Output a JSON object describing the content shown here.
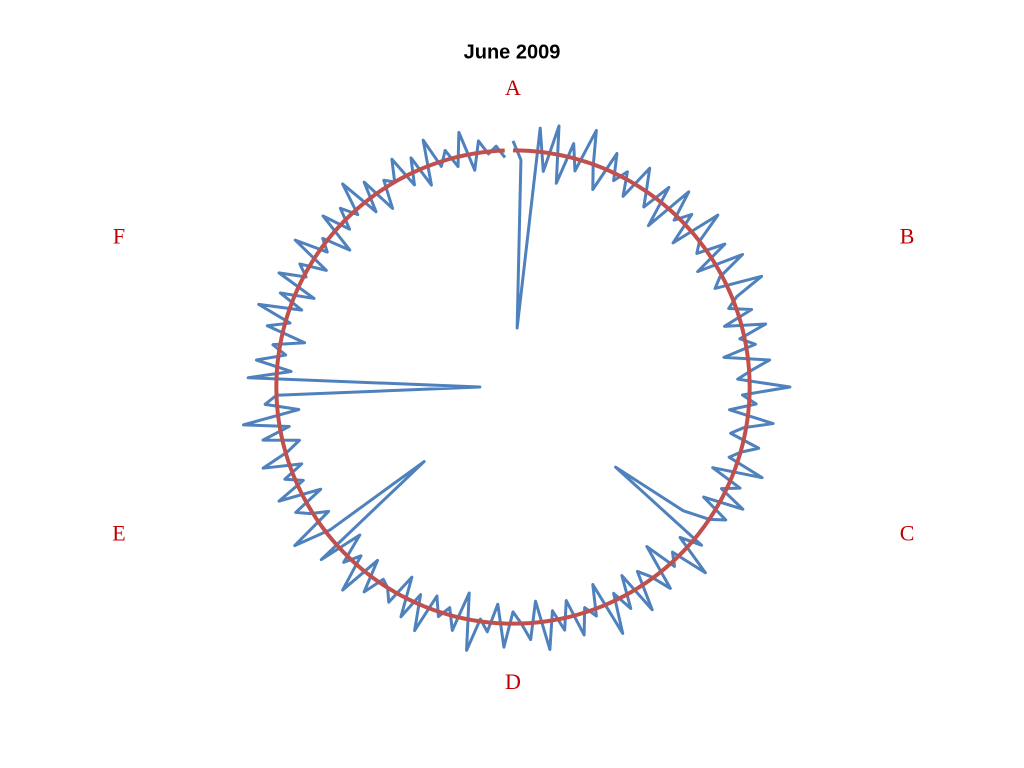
{
  "chart_data": {
    "type": "radar",
    "title": "June 2009",
    "categories": [
      "A",
      null,
      null,
      null,
      null,
      null,
      null,
      null,
      null,
      null,
      null,
      null,
      null,
      null,
      null,
      null,
      null,
      null,
      null,
      null,
      null,
      null,
      null,
      null,
      null,
      null,
      null,
      null,
      null,
      null,
      "B",
      null,
      null,
      null,
      null,
      null,
      null,
      null,
      null,
      null,
      null,
      null,
      null,
      null,
      null,
      null,
      null,
      null,
      null,
      null,
      null,
      null,
      null,
      null,
      null,
      null,
      null,
      null,
      null,
      null,
      "C",
      null,
      null,
      null,
      null,
      null,
      null,
      null,
      null,
      null,
      null,
      null,
      null,
      null,
      null,
      null,
      null,
      null,
      null,
      null,
      null,
      null,
      null,
      null,
      null,
      null,
      null,
      null,
      null,
      null,
      "D",
      null,
      null,
      null,
      null,
      null,
      null,
      null,
      null,
      null,
      null,
      null,
      null,
      null,
      null,
      null,
      null,
      null,
      null,
      null,
      null,
      null,
      null,
      null,
      null,
      null,
      null,
      null,
      null,
      null,
      "E",
      null,
      null,
      null,
      null,
      null,
      null,
      null,
      null,
      null,
      null,
      null,
      null,
      null,
      null,
      null,
      null,
      null,
      null,
      null,
      null,
      null,
      null,
      null,
      null,
      null,
      null,
      null,
      null,
      null,
      "F",
      null,
      null,
      null,
      null,
      null,
      null,
      null,
      null,
      null,
      null,
      null,
      null,
      null,
      null,
      null,
      null,
      null,
      null,
      null,
      null,
      null,
      null,
      null,
      null,
      null,
      null,
      null,
      null,
      null
    ],
    "rlim": [
      0,
      120
    ],
    "series": [
      {
        "color": "#4f81bd",
        "values": [
          104,
          96,
          25,
          110,
          92,
          112,
          88,
          106,
          95,
          114,
          99,
          90,
          108,
          97,
          103,
          93,
          109,
          101,
          94,
          107,
          89,
          111,
          98,
          105,
          91,
          113,
          100,
          96,
          108,
          92,
          112,
          99,
          95,
          115,
          102,
          97,
          106,
          93,
          110,
          98,
          104,
          90,
          109,
          101,
          95,
          117,
          97,
          103,
          92,
          111,
          99,
          94,
          107,
          100,
          96,
          112,
          91,
          105,
          98,
          110,
          93,
          106,
          100,
          89,
          55,
          104,
          95,
          113,
          97,
          102,
          88,
          108,
          99,
          94,
          111,
          92,
          106,
          97,
          114,
          90,
          103,
          98,
          109,
          93,
          105,
          96,
          112,
          91,
          107,
          100,
          95,
          110,
          92,
          104,
          99,
          113,
          89,
          106,
          97,
          102,
          94,
          111,
          96,
          108,
          91,
          105,
          100,
          98,
          107,
          93,
          112,
          96,
          103,
          90,
          109,
          49,
          98,
          114,
          94,
          101,
          106,
          92,
          110,
          97,
          104,
          95,
          111,
          99,
          93,
          108,
          96,
          115,
          91,
          105,
          100,
          14,
          112,
          94,
          109,
          97,
          103,
          90,
          107,
          98,
          113,
          95,
          106,
          92,
          110,
          99,
          104,
          93,
          111,
          97,
          102,
          90,
          108,
          96,
          105,
          98,
          112,
          94,
          107,
          91,
          103,
          100,
          109,
          95,
          106,
          92,
          111,
          98,
          104,
          96,
          110,
          93,
          105,
          99,
          102,
          97
        ]
      },
      {
        "color": "#c0504d",
        "values": [
          100,
          100,
          100,
          100,
          100,
          100,
          100,
          100,
          100,
          100,
          100,
          100,
          100,
          100,
          100,
          100,
          100,
          100,
          100,
          100,
          100,
          100,
          100,
          100,
          100,
          100,
          100,
          100,
          100,
          100,
          100,
          100,
          100,
          100,
          100,
          100,
          100,
          100,
          100,
          100,
          100,
          100,
          100,
          100,
          100,
          100,
          100,
          100,
          100,
          100,
          100,
          100,
          100,
          100,
          100,
          100,
          100,
          100,
          100,
          100,
          100,
          100,
          100,
          100,
          100,
          100,
          100,
          100,
          100,
          100,
          100,
          100,
          100,
          100,
          100,
          100,
          100,
          100,
          100,
          100,
          100,
          100,
          100,
          100,
          100,
          100,
          100,
          100,
          100,
          100,
          100,
          100,
          100,
          100,
          100,
          100,
          100,
          100,
          100,
          100,
          100,
          100,
          100,
          100,
          100,
          100,
          100,
          100,
          100,
          100,
          100,
          100,
          100,
          100,
          100,
          100,
          100,
          100,
          100,
          100,
          100,
          100,
          100,
          100,
          100,
          100,
          100,
          100,
          100,
          100,
          100,
          100,
          100,
          100,
          100,
          100,
          100,
          100,
          100,
          100,
          100,
          100,
          100,
          100,
          100,
          100,
          100,
          100,
          100,
          100,
          100,
          100,
          100,
          100,
          100,
          100,
          100,
          100,
          100,
          100,
          100,
          100,
          100,
          100,
          100,
          100,
          100,
          100,
          100,
          100,
          100,
          100,
          100,
          100,
          100,
          100,
          100,
          100,
          100,
          100
        ]
      }
    ],
    "label_color": "#c00000"
  }
}
